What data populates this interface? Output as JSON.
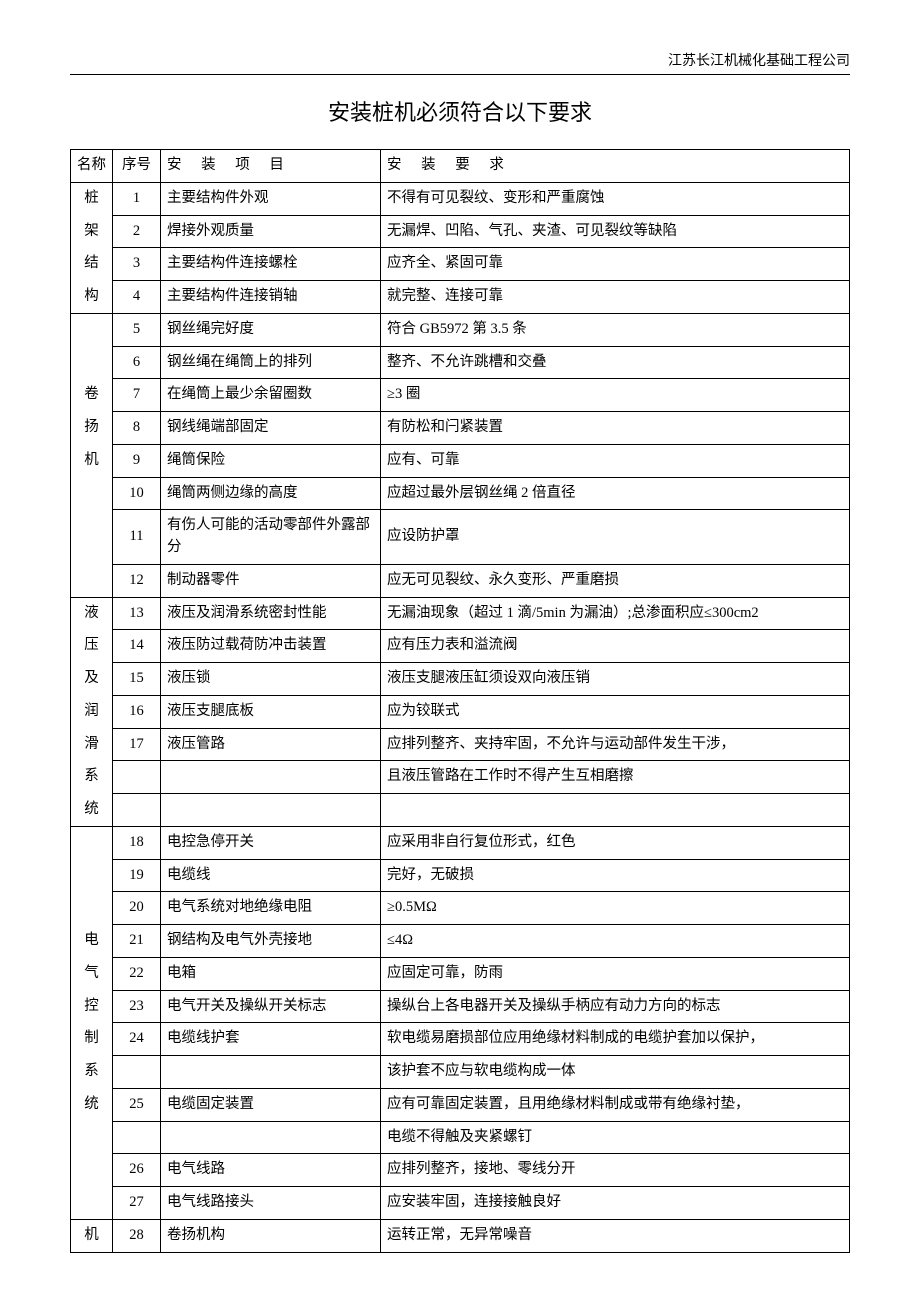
{
  "company": "江苏长江机械化基础工程公司",
  "title": "安装桩机必须符合以下要求",
  "headers": {
    "name": "名称",
    "seq": "序号",
    "item": "安 装 项 目",
    "req": "安 装 要 求"
  },
  "groups": [
    {
      "label": "桩架结构"
    },
    {
      "label": "卷扬机"
    },
    {
      "label": "液压及润滑系统"
    },
    {
      "label": "电气控制系统"
    },
    {
      "label": "机"
    }
  ],
  "rows": {
    "r1": {
      "seq": "1",
      "item": "主要结构件外观",
      "req": "不得有可见裂纹、变形和严重腐蚀"
    },
    "r2": {
      "seq": "2",
      "item": "焊接外观质量",
      "req": "无漏焊、凹陷、气孔、夹渣、可见裂纹等缺陷"
    },
    "r3": {
      "seq": "3",
      "item": "主要结构件连接螺栓",
      "req": "应齐全、紧固可靠"
    },
    "r4": {
      "seq": "4",
      "item": "主要结构件连接销轴",
      "req": "就完整、连接可靠"
    },
    "r5": {
      "seq": "5",
      "item": "钢丝绳完好度",
      "req": "符合 GB5972 第 3.5 条"
    },
    "r6": {
      "seq": "6",
      "item": "钢丝绳在绳筒上的排列",
      "req": "整齐、不允许跳槽和交叠"
    },
    "r7": {
      "seq": "7",
      "item": "在绳筒上最少余留圈数",
      "req": "≥3 圈"
    },
    "r8": {
      "seq": "8",
      "item": "钢线绳端部固定",
      "req": "有防松和闩紧装置"
    },
    "r9": {
      "seq": "9",
      "item": "绳筒保险",
      "req": "应有、可靠"
    },
    "r10": {
      "seq": "10",
      "item": "绳筒两侧边缘的高度",
      "req": "应超过最外层钢丝绳 2 倍直径"
    },
    "r11": {
      "seq": "11",
      "item": "有伤人可能的活动零部件外露部分",
      "req": "应设防护罩"
    },
    "r12": {
      "seq": "12",
      "item": "制动器零件",
      "req": "应无可见裂纹、永久变形、严重磨损"
    },
    "r13": {
      "seq": "13",
      "item": "液压及润滑系统密封性能",
      "req": "无漏油现象（超过 1 滴/5min 为漏油）;总渗面积应≤300cm2"
    },
    "r14": {
      "seq": "14",
      "item": "液压防过载荷防冲击装置",
      "req": "应有压力表和溢流阀"
    },
    "r15": {
      "seq": "15",
      "item": "液压锁",
      "req": "液压支腿液压缸须设双向液压销"
    },
    "r16": {
      "seq": "16",
      "item": "液压支腿底板",
      "req": "应为铰联式"
    },
    "r17": {
      "seq": "17",
      "item": "液压管路",
      "req": "应排列整齐、夹持牢固，不允许与运动部件发生干涉，"
    },
    "r17b": {
      "req": "且液压管路在工作时不得产生互相磨擦"
    },
    "r18": {
      "seq": "18",
      "item": "电控急停开关",
      "req": "应采用非自行复位形式，红色"
    },
    "r19": {
      "seq": "19",
      "item": "电缆线",
      "req": "完好，无破损"
    },
    "r20": {
      "seq": "20",
      "item": "电气系统对地绝缘电阻",
      "req": "≥0.5MΩ"
    },
    "r21": {
      "seq": "21",
      "item": "钢结构及电气外壳接地",
      "req": "≤4Ω"
    },
    "r22": {
      "seq": "22",
      "item": "电箱",
      "req": "应固定可靠，防雨"
    },
    "r23": {
      "seq": "23",
      "item": "电气开关及操纵开关标志",
      "req": "操纵台上各电器开关及操纵手柄应有动力方向的标志"
    },
    "r24": {
      "seq": "24",
      "item": "电缆线护套",
      "req": "软电缆易磨损部位应用绝缘材料制成的电缆护套加以保护，"
    },
    "r24b": {
      "req": "该护套不应与软电缆构成一体"
    },
    "r25": {
      "seq": "25",
      "item": "电缆固定装置",
      "req": "应有可靠固定装置，且用绝缘材料制成或带有绝缘衬垫，"
    },
    "r25b": {
      "req": "电缆不得触及夹紧螺钉"
    },
    "r26": {
      "seq": "26",
      "item": "电气线路",
      "req": "应排列整齐，接地、零线分开"
    },
    "r27": {
      "seq": "27",
      "item": "电气线路接头",
      "req": "应安装牢固，连接接触良好"
    },
    "r28": {
      "seq": "28",
      "item": "卷扬机构",
      "req": "运转正常，无异常噪音"
    }
  }
}
